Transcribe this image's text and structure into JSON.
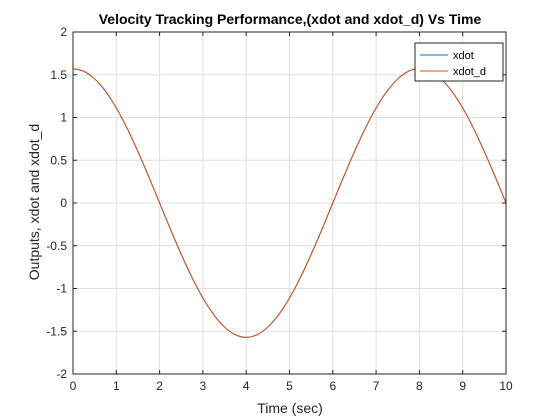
{
  "chart_data": {
    "type": "line",
    "title": "Velocity Tracking Performance,(xdot and xdot_d) Vs Time",
    "xlabel": "Time (sec)",
    "ylabel": "Outputs, xdot and xdot_d",
    "xlim": [
      0,
      10
    ],
    "ylim": [
      -2,
      2
    ],
    "xticks": [
      "0",
      "1",
      "2",
      "3",
      "4",
      "5",
      "6",
      "7",
      "8",
      "9",
      "10"
    ],
    "yticks": [
      "-2",
      "-1.5",
      "-1",
      "-0.5",
      "0",
      "0.5",
      "1",
      "1.5",
      "2"
    ],
    "grid": true,
    "legend_position": "top-right",
    "series": [
      {
        "name": "xdot",
        "color": "#0072BD",
        "x": [
          0,
          0.25,
          0.5,
          0.75,
          1,
          1.25,
          1.5,
          1.75,
          2,
          2.25,
          2.5,
          2.75,
          3,
          3.25,
          3.5,
          3.75,
          4,
          4.25,
          4.5,
          4.75,
          5,
          5.25,
          5.5,
          5.75,
          6,
          6.25,
          6.5,
          6.75,
          7,
          7.25,
          7.5,
          7.75,
          8,
          8.25,
          8.5,
          8.75,
          9,
          9.25,
          9.5,
          9.75,
          10
        ],
        "y": [
          1.571,
          1.539,
          1.451,
          1.311,
          1.111,
          0.873,
          0.601,
          0.307,
          0,
          -0.307,
          -0.601,
          -0.873,
          -1.111,
          -1.306,
          -1.451,
          -1.541,
          -1.571,
          -1.541,
          -1.451,
          -1.306,
          -1.111,
          -0.873,
          -0.601,
          -0.307,
          0,
          0.307,
          0.601,
          0.873,
          1.111,
          1.306,
          1.451,
          1.541,
          1.571,
          1.541,
          1.451,
          1.306,
          1.111,
          0.873,
          0.601,
          0.307,
          0
        ]
      },
      {
        "name": "xdot_d",
        "color": "#D95319",
        "x": [
          0,
          0.25,
          0.5,
          0.75,
          1,
          1.25,
          1.5,
          1.75,
          2,
          2.25,
          2.5,
          2.75,
          3,
          3.25,
          3.5,
          3.75,
          4,
          4.25,
          4.5,
          4.75,
          5,
          5.25,
          5.5,
          5.75,
          6,
          6.25,
          6.5,
          6.75,
          7,
          7.25,
          7.5,
          7.75,
          8,
          8.25,
          8.5,
          8.75,
          9,
          9.25,
          9.5,
          9.75,
          10
        ],
        "y": [
          1.571,
          1.541,
          1.451,
          1.306,
          1.111,
          0.873,
          0.601,
          0.307,
          0,
          -0.307,
          -0.601,
          -0.873,
          -1.111,
          -1.306,
          -1.451,
          -1.541,
          -1.571,
          -1.541,
          -1.451,
          -1.306,
          -1.111,
          -0.873,
          -0.601,
          -0.307,
          0,
          0.307,
          0.601,
          0.873,
          1.111,
          1.306,
          1.451,
          1.541,
          1.571,
          1.541,
          1.451,
          1.306,
          1.111,
          0.873,
          0.601,
          0.307,
          0
        ]
      }
    ]
  }
}
